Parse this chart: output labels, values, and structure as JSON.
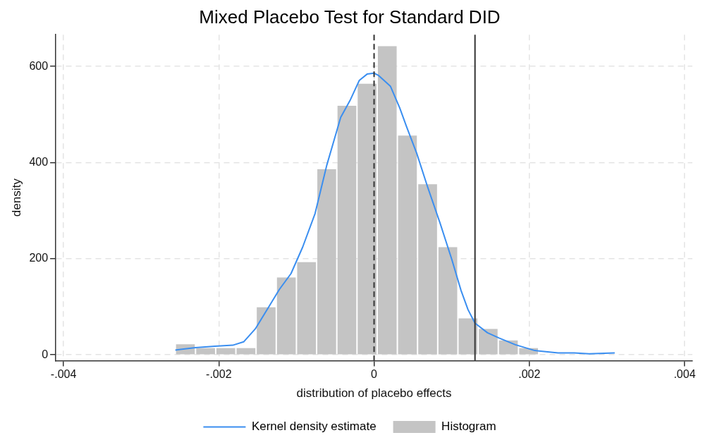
{
  "chart_data": {
    "type": "histogram",
    "title": "Mixed Placebo Test for Standard DID",
    "xlabel": "distribution of placebo effects",
    "ylabel": "density",
    "xlim": [
      -0.0041,
      0.0041
    ],
    "xticks": [
      {
        "value": -0.004,
        "label": "-.004"
      },
      {
        "value": -0.002,
        "label": "-.002"
      },
      0,
      {
        "value": 0.002,
        "label": ".002"
      },
      {
        "value": 0.004,
        "label": ".004"
      }
    ],
    "ylim": [
      -12,
      666
    ],
    "yticks": [
      0,
      200,
      400,
      600
    ],
    "grid": true,
    "legend": "bottom",
    "ref_lines": [
      {
        "axis": "x",
        "value": 0,
        "color": "#333333",
        "line_style": "dashed"
      },
      {
        "axis": "x",
        "value": 0.0013,
        "color": "#333333",
        "line_style": "solid"
      }
    ],
    "series": [
      {
        "name": "Kernel density estimate",
        "type": "line",
        "color": "#3a8ef0",
        "marker": "none",
        "line_style": "solid",
        "x": [
          -0.00256,
          -0.0023,
          -0.00205,
          -0.00182,
          -0.00168,
          -0.00153,
          -0.00134,
          -0.00122,
          -0.00107,
          -0.00092,
          -0.00076,
          -0.00061,
          -0.00043,
          -0.00031,
          -0.00019,
          -9e-05,
          0,
          6e-05,
          0.00021,
          0.00033,
          0.00042,
          0.00055,
          0.00069,
          0.00085,
          0.001,
          0.00112,
          0.00121,
          0.0013,
          0.00146,
          0.00161,
          0.00182,
          0.00207,
          0.00237,
          0.00258,
          0.00277,
          0.0031
        ],
        "values": [
          10,
          15,
          18,
          20,
          27,
          54,
          104,
          136,
          169,
          224,
          294,
          394,
          494,
          529,
          571,
          584,
          586,
          581,
          559,
          514,
          474,
          419,
          349,
          274,
          199,
          134,
          94,
          66,
          46,
          35,
          21,
          9,
          4,
          4,
          2,
          4
        ]
      },
      {
        "name": "Histogram",
        "type": "histogram",
        "color": "#c4c4c4",
        "bins": [
          -0.00256,
          -0.0023,
          -0.00204,
          -0.00178,
          -0.00152,
          -0.00126,
          -0.001,
          -0.00074,
          -0.00048,
          -0.00022,
          4e-05,
          0.0003,
          0.00056,
          0.00082,
          0.00108,
          0.00134,
          0.0016,
          0.00186,
          0.00212
        ],
        "values": [
          22,
          14,
          14,
          14,
          99,
          161,
          193,
          386,
          518,
          564,
          642,
          456,
          355,
          224,
          76,
          54,
          30,
          14
        ]
      }
    ]
  }
}
